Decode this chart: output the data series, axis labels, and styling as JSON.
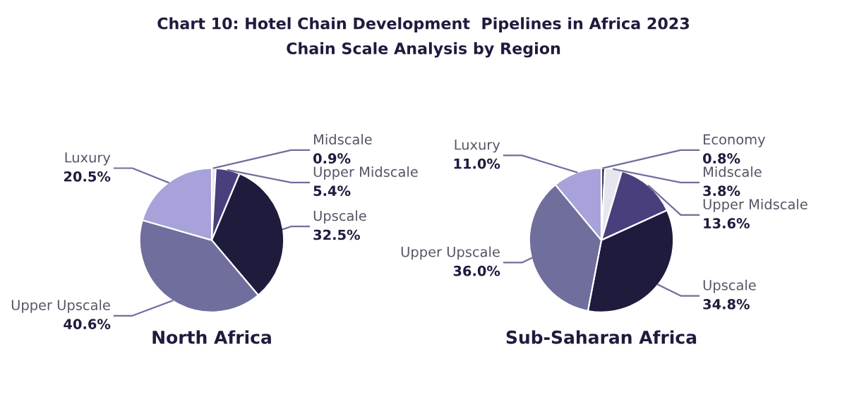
{
  "chart_data": [
    {
      "type": "pie",
      "title": "Chart 10: Hotel Chain Development  Pipelines in Africa 2023",
      "subtitle": "Chain Scale Analysis by Region",
      "xlabel": "North Africa",
      "categories": [
        "Midscale",
        "Upper Midscale",
        "Upscale",
        "Upper Upscale",
        "Luxury"
      ],
      "values": [
        0.9,
        5.4,
        32.5,
        40.6,
        20.5
      ],
      "value_labels": [
        "0.9%",
        "5.4%",
        "32.5%",
        "40.6%",
        "20.5%"
      ],
      "colors": [
        "#e6e6ee",
        "#4a3f7d",
        "#1f1b3d",
        "#6f6e9c",
        "#a7a2da"
      ]
    },
    {
      "type": "pie",
      "xlabel": "Sub-Saharan Africa",
      "categories": [
        "Economy",
        "Midscale",
        "Upper Midscale",
        "Upscale",
        "Upper Upscale",
        "Luxury"
      ],
      "values": [
        0.8,
        3.8,
        13.6,
        34.8,
        36.0,
        11.0
      ],
      "value_labels": [
        "0.8%",
        "3.8%",
        "13.6%",
        "34.8%",
        "36.0%",
        "11.0%"
      ],
      "colors": [
        "#2a2540",
        "#e6e6ee",
        "#4a3f7d",
        "#1f1b3d",
        "#6f6e9c",
        "#a7a2da"
      ]
    }
  ]
}
